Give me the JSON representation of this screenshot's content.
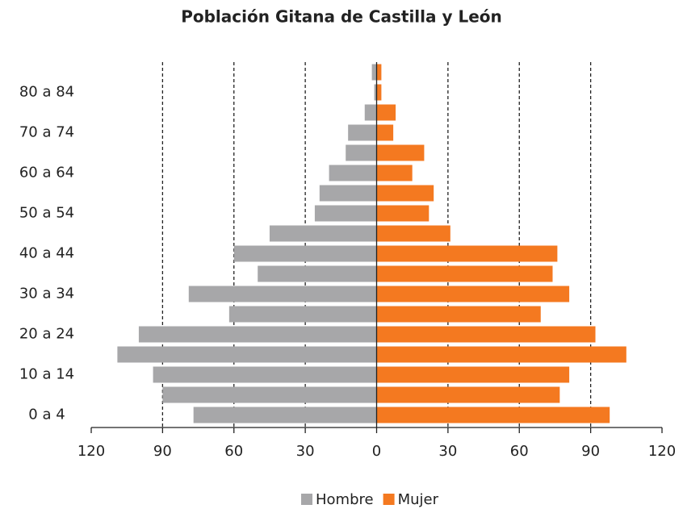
{
  "chart_data": {
    "type": "pyramid",
    "title": "Población Gitana de Castilla y León",
    "categories": [
      "0 a 4",
      null,
      "10 a 14",
      null,
      "20 a 24",
      null,
      "30 a 34",
      null,
      "40 a 44",
      null,
      "50 a 54",
      null,
      "60 a 64",
      null,
      "70 a 74",
      null,
      "80 a 84",
      null
    ],
    "series": [
      {
        "name": "Hombre",
        "color": "#a7a7a9",
        "values": [
          -77,
          -90,
          -94,
          -109,
          -100,
          -62,
          -79,
          -50,
          -60,
          -45,
          -26,
          -24,
          -20,
          -13,
          -12,
          -5,
          -1,
          -2
        ]
      },
      {
        "name": "Mujer",
        "color": "#f47920",
        "values": [
          98,
          77,
          81,
          105,
          92,
          69,
          81,
          74,
          76,
          31,
          22,
          24,
          15,
          20,
          7,
          8,
          2,
          2
        ]
      }
    ],
    "xlim": [
      -120,
      120
    ],
    "xticks": [
      {
        "value": -120,
        "label": "120"
      },
      {
        "value": -90,
        "label": "90"
      },
      {
        "value": -60,
        "label": "60"
      },
      {
        "value": -30,
        "label": "30"
      },
      0,
      30,
      60,
      90,
      120
    ],
    "grid": true,
    "legend": "bottom"
  }
}
